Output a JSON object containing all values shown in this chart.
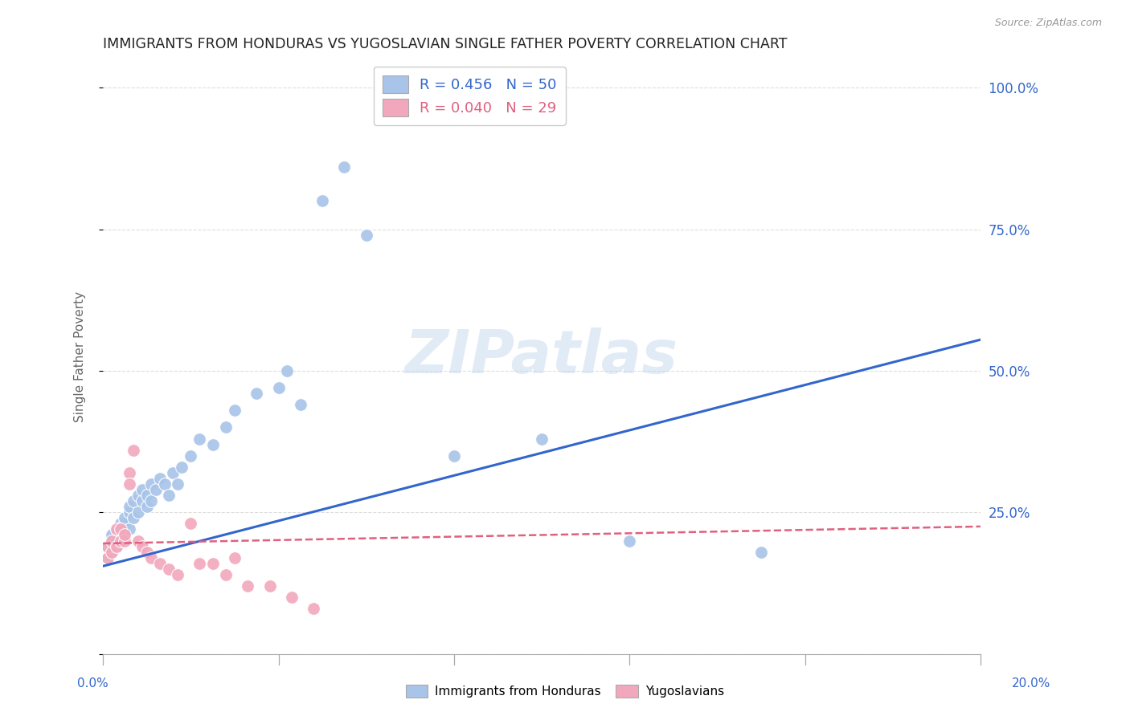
{
  "title": "IMMIGRANTS FROM HONDURAS VS YUGOSLAVIAN SINGLE FATHER POVERTY CORRELATION CHART",
  "source": "Source: ZipAtlas.com",
  "ylabel": "Single Father Poverty",
  "x_label_bottom_left": "0.0%",
  "x_label_bottom_right": "20.0%",
  "y_ticks": [
    0.0,
    0.25,
    0.5,
    0.75,
    1.0
  ],
  "y_tick_labels": [
    "",
    "25.0%",
    "50.0%",
    "75.0%",
    "100.0%"
  ],
  "xlim": [
    0.0,
    0.2
  ],
  "ylim": [
    0.0,
    1.05
  ],
  "legend_label1": "Immigrants from Honduras",
  "legend_label2": "Yugoslavians",
  "legend_r1": "R = 0.456",
  "legend_n1": "N = 50",
  "legend_r2": "R = 0.040",
  "legend_n2": "N = 29",
  "blue_color": "#a8c4e8",
  "pink_color": "#f2a8bc",
  "blue_line_color": "#3366cc",
  "pink_line_color": "#e06080",
  "watermark": "ZIPatlas",
  "blue_scatter_x": [
    0.001,
    0.001,
    0.002,
    0.002,
    0.002,
    0.003,
    0.003,
    0.003,
    0.004,
    0.004,
    0.004,
    0.005,
    0.005,
    0.005,
    0.006,
    0.006,
    0.006,
    0.007,
    0.007,
    0.008,
    0.008,
    0.009,
    0.009,
    0.01,
    0.01,
    0.011,
    0.011,
    0.012,
    0.013,
    0.014,
    0.015,
    0.016,
    0.017,
    0.018,
    0.02,
    0.022,
    0.025,
    0.028,
    0.03,
    0.035,
    0.04,
    0.042,
    0.045,
    0.05,
    0.055,
    0.06,
    0.08,
    0.1,
    0.12,
    0.15
  ],
  "blue_scatter_y": [
    0.17,
    0.19,
    0.18,
    0.2,
    0.21,
    0.19,
    0.2,
    0.22,
    0.2,
    0.22,
    0.23,
    0.21,
    0.23,
    0.24,
    0.22,
    0.25,
    0.26,
    0.24,
    0.27,
    0.25,
    0.28,
    0.27,
    0.29,
    0.26,
    0.28,
    0.3,
    0.27,
    0.29,
    0.31,
    0.3,
    0.28,
    0.32,
    0.3,
    0.33,
    0.35,
    0.38,
    0.37,
    0.4,
    0.43,
    0.46,
    0.47,
    0.5,
    0.44,
    0.8,
    0.86,
    0.74,
    0.35,
    0.38,
    0.2,
    0.18
  ],
  "pink_scatter_x": [
    0.001,
    0.001,
    0.002,
    0.002,
    0.003,
    0.003,
    0.004,
    0.004,
    0.005,
    0.005,
    0.006,
    0.006,
    0.007,
    0.008,
    0.009,
    0.01,
    0.011,
    0.013,
    0.015,
    0.017,
    0.02,
    0.022,
    0.025,
    0.028,
    0.03,
    0.033,
    0.038,
    0.043,
    0.048
  ],
  "pink_scatter_y": [
    0.17,
    0.19,
    0.18,
    0.2,
    0.19,
    0.22,
    0.2,
    0.22,
    0.2,
    0.21,
    0.32,
    0.3,
    0.36,
    0.2,
    0.19,
    0.18,
    0.17,
    0.16,
    0.15,
    0.14,
    0.23,
    0.16,
    0.16,
    0.14,
    0.17,
    0.12,
    0.12,
    0.1,
    0.08
  ],
  "blue_trendline_x": [
    0.0,
    0.2
  ],
  "blue_trendline_y": [
    0.155,
    0.555
  ],
  "pink_trendline_x": [
    0.0,
    0.2
  ],
  "pink_trendline_y": [
    0.195,
    0.225
  ],
  "grid_color": "#dddddd",
  "bg_color": "#ffffff"
}
